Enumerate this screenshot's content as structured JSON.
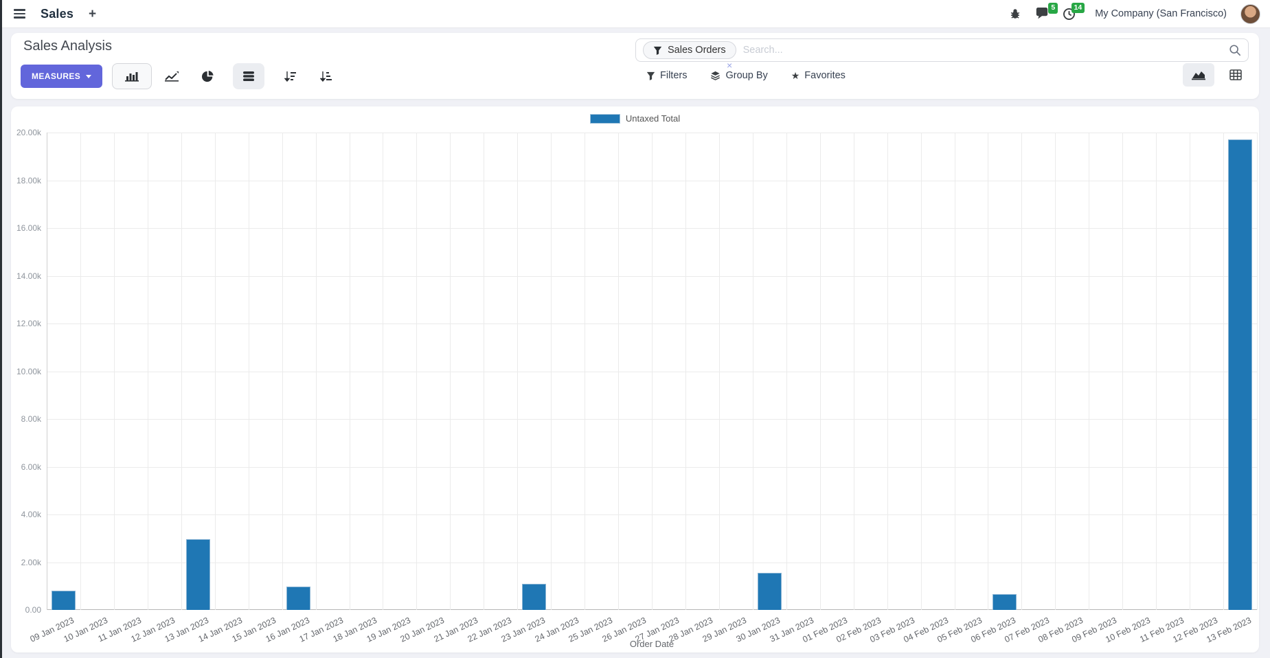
{
  "navbar": {
    "app_name": "Sales",
    "plus": "+",
    "message_badge": "5",
    "activity_badge": "14",
    "company": "My Company (San Francisco)"
  },
  "control_panel": {
    "title": "Sales Analysis",
    "measures_label": "MEASURES",
    "search": {
      "facet_label": "Sales Orders",
      "facet_close": "×",
      "placeholder": "Search..."
    },
    "filters_label": "Filters",
    "group_by_label": "Group By",
    "favorites_label": "Favorites",
    "favorites_star": "★"
  },
  "chart_data": {
    "type": "bar",
    "title": "",
    "xlabel": "Order Date",
    "ylabel": "",
    "ylim": [
      0,
      20000
    ],
    "grid": true,
    "legend_position": "top-center",
    "y_ticks": [
      "0.00",
      "2.00k",
      "4.00k",
      "6.00k",
      "8.00k",
      "10.00k",
      "12.00k",
      "14.00k",
      "16.00k",
      "18.00k",
      "20.00k"
    ],
    "categories": [
      "09 Jan 2023",
      "10 Jan 2023",
      "11 Jan 2023",
      "12 Jan 2023",
      "13 Jan 2023",
      "14 Jan 2023",
      "15 Jan 2023",
      "16 Jan 2023",
      "17 Jan 2023",
      "18 Jan 2023",
      "19 Jan 2023",
      "20 Jan 2023",
      "21 Jan 2023",
      "22 Jan 2023",
      "23 Jan 2023",
      "24 Jan 2023",
      "25 Jan 2023",
      "26 Jan 2023",
      "27 Jan 2023",
      "28 Jan 2023",
      "29 Jan 2023",
      "30 Jan 2023",
      "31 Jan 2023",
      "01 Feb 2023",
      "02 Feb 2023",
      "03 Feb 2023",
      "04 Feb 2023",
      "05 Feb 2023",
      "06 Feb 2023",
      "07 Feb 2023",
      "08 Feb 2023",
      "09 Feb 2023",
      "10 Feb 2023",
      "11 Feb 2023",
      "12 Feb 2023",
      "13 Feb 2023"
    ],
    "series": [
      {
        "name": "Untaxed Total",
        "color": "#1f77b4",
        "values": [
          810,
          0,
          0,
          0,
          2960,
          0,
          0,
          980,
          0,
          0,
          0,
          0,
          0,
          0,
          1090,
          0,
          0,
          0,
          0,
          0,
          0,
          1550,
          0,
          0,
          0,
          0,
          0,
          0,
          660,
          0,
          0,
          0,
          0,
          0,
          0,
          19700
        ]
      }
    ]
  },
  "colors": {
    "accent": "#6266db",
    "badge_green": "#28a745",
    "bar": "#1f77b4",
    "background": "#f0f1f6"
  }
}
